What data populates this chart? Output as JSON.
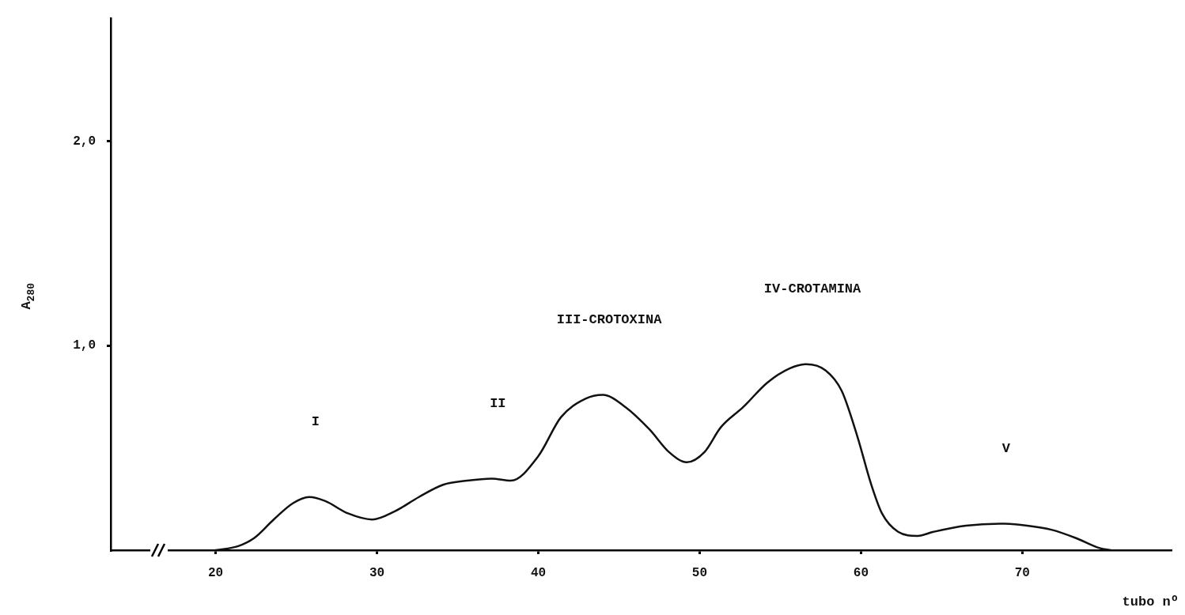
{
  "chart_data": {
    "type": "line",
    "xlabel": "tubo nº",
    "ylabel": "A$_{280}$",
    "x": [
      20,
      21.4,
      22.4,
      23.6,
      24.8,
      25.8,
      26.8,
      28.2,
      29.7,
      31.1,
      32.6,
      34.1,
      35.6,
      37.1,
      38.3,
      40,
      41.4,
      42.9,
      44,
      45.4,
      46.9,
      48.1,
      49.2,
      50.3,
      51.3,
      52.7,
      54.2,
      55.6,
      56.6,
      57.8,
      58.8,
      59.8,
      60.6,
      61.3,
      62.3,
      63.5,
      64.5,
      66.5,
      68.6,
      70.3,
      71.8,
      73.3,
      74.8,
      75.5
    ],
    "series": [
      {
        "color": "#111111",
        "values": [
          0,
          0.02,
          0.06,
          0.15,
          0.23,
          0.26,
          0.24,
          0.18,
          0.15,
          0.19,
          0.26,
          0.32,
          0.34,
          0.35,
          0.34,
          0.46,
          0.65,
          0.74,
          0.76,
          0.7,
          0.59,
          0.48,
          0.43,
          0.48,
          0.6,
          0.7,
          0.82,
          0.89,
          0.91,
          0.88,
          0.78,
          0.55,
          0.33,
          0.18,
          0.09,
          0.07,
          0.09,
          0.12,
          0.13,
          0.12,
          0.1,
          0.06,
          0.01,
          0
        ]
      }
    ],
    "xlim": [
      13.5,
      79.2
    ],
    "ylim": [
      0,
      2.6
    ],
    "xticks": [
      20,
      30,
      40,
      50,
      60,
      70
    ],
    "yticks": [
      {
        "value": 1,
        "label": "1,0"
      },
      {
        "value": 2,
        "label": "2,0"
      }
    ],
    "annotations": [
      "I",
      "II",
      "III-CROTOXINA",
      "IV-CROTAMINA",
      "V"
    ],
    "grid": false,
    "legend": false,
    "marker": "none",
    "line_style": "solid"
  }
}
